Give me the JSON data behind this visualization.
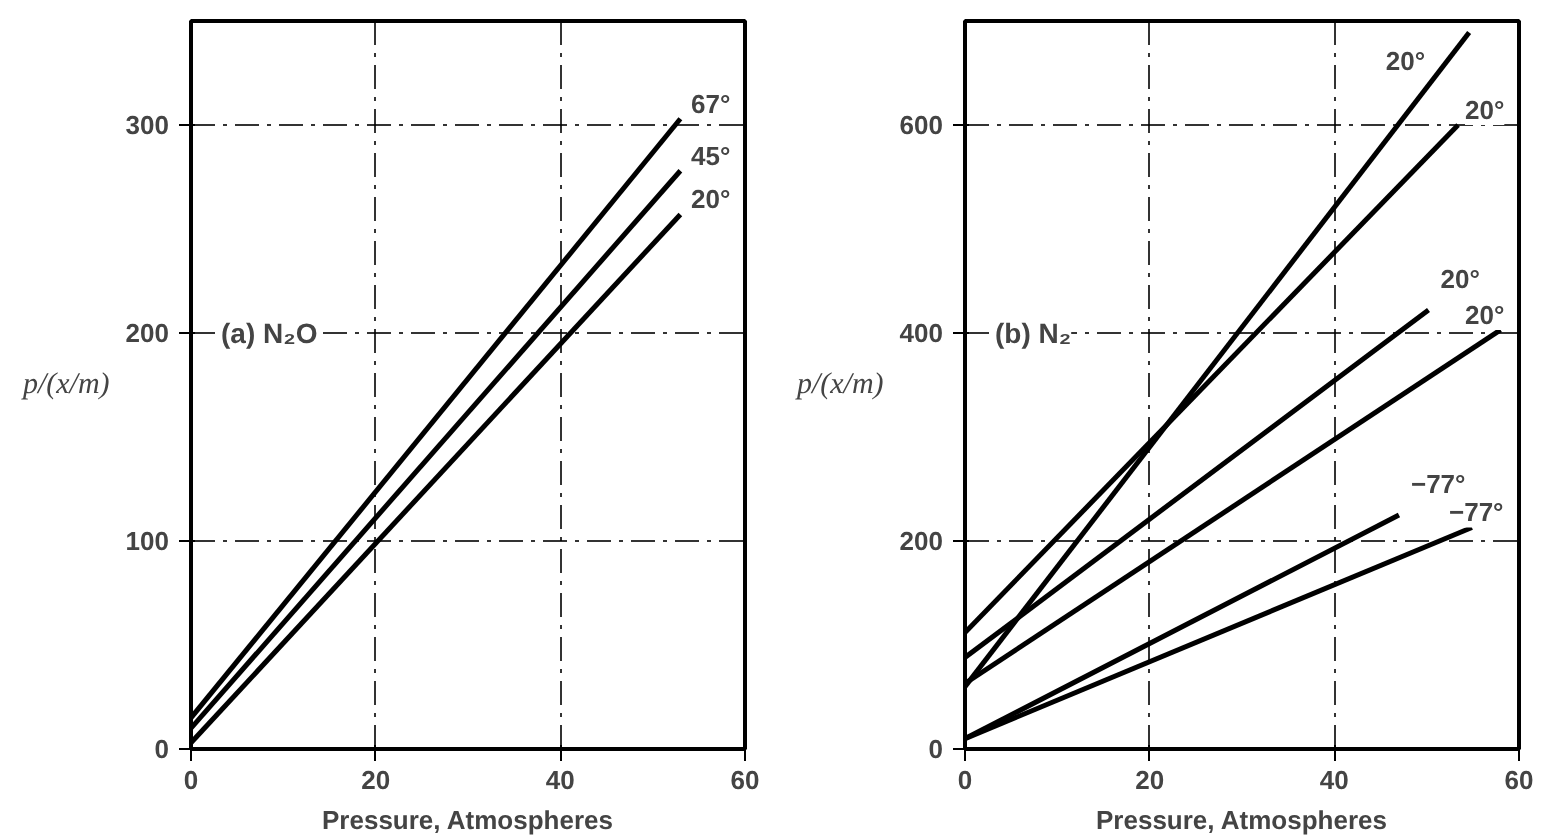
{
  "chart_data": [
    {
      "type": "line",
      "xlabel": "Pressure, Atmospheres",
      "ylabel": "p/(x/m)",
      "annotations": [
        "(a) N₂O"
      ],
      "xlim": [
        0,
        60
      ],
      "ylim": [
        0,
        350
      ],
      "xticks": [
        0,
        20,
        40,
        60
      ],
      "yticks": [
        0,
        100,
        200,
        300
      ],
      "grid": true,
      "marker": "none",
      "line_style": "solid",
      "series": [
        {
          "name": "67°",
          "color": "#000000",
          "x": [
            0,
            53
          ],
          "values": [
            15,
            303
          ]
        },
        {
          "name": "45°",
          "color": "#000000",
          "x": [
            0,
            53
          ],
          "values": [
            10,
            278
          ]
        },
        {
          "name": "20°",
          "color": "#000000",
          "x": [
            0,
            53
          ],
          "values": [
            3,
            257
          ]
        }
      ]
    },
    {
      "type": "line",
      "xlabel": "Pressure, Atmospheres",
      "ylabel": "p/(x/m)",
      "annotations": [
        "(b) N₂"
      ],
      "xlim": [
        0,
        60
      ],
      "ylim": [
        0,
        700
      ],
      "xticks": [
        0,
        20,
        40,
        60
      ],
      "yticks": [
        0,
        200,
        400,
        600
      ],
      "grid": true,
      "marker": "none",
      "line_style": "solid",
      "series": [
        {
          "name": "20°",
          "color": "#000000",
          "x": [
            0,
            54.6
          ],
          "values": [
            60,
            689
          ]
        },
        {
          "name": "20°",
          "color": "#000000",
          "x": [
            0,
            53.4
          ],
          "values": [
            112,
            600
          ]
        },
        {
          "name": "20°",
          "color": "#000000",
          "x": [
            0,
            50.2
          ],
          "values": [
            88,
            422
          ]
        },
        {
          "name": "20°",
          "color": "#000000",
          "x": [
            0,
            58
          ],
          "values": [
            63,
            403
          ]
        },
        {
          "name": "−77°",
          "color": "#000000",
          "x": [
            0,
            47
          ],
          "values": [
            10,
            225
          ]
        },
        {
          "name": "−77°",
          "color": "#000000",
          "x": [
            0,
            54.9
          ],
          "values": [
            10,
            213
          ]
        }
      ]
    }
  ]
}
